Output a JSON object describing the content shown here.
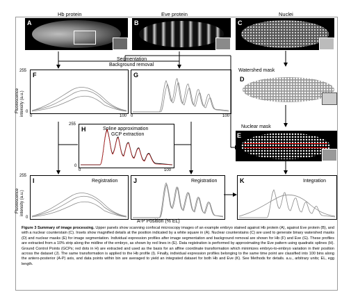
{
  "panel_titles": {
    "hb": "Hb protein",
    "eve": "Eve protein",
    "nuclei": "Nuclei"
  },
  "panel_letters": {
    "A": "A",
    "B": "B",
    "C": "C",
    "D": "D",
    "E": "E",
    "F": "F",
    "G": "G",
    "H": "H",
    "I": "I",
    "J": "J",
    "K": "K"
  },
  "process_labels": {
    "segmentation": "Segmentation",
    "background": "Background removal",
    "watershed": "Watershed mask",
    "nuclear": "Nuclear mask",
    "spline": "Spline approximation",
    "gcp": "GCP extraction",
    "registration_i": "Registration",
    "registration_j": "Registration",
    "integration": "Integration"
  },
  "axes": {
    "y_label_line1": "Fluorescence",
    "y_label_line2": "intensity (a.u.)",
    "y_max": "255",
    "y_min": "0",
    "x_max": "100",
    "x_axis_label": "A-P Position (% EL)"
  },
  "caption": {
    "heading": "Figure 3 Summary of image processing.",
    "body": " Upper panels show scanning confocal microscopy images of an example embryo stained against Hb protein (A), against Eve protein (B), and with a nuclear counterstain (C). Insets show magnified details at the position indicated by a white square in (A). Nuclear counterstains (C) are used to generate binary watershed masks (D) and nuclear masks (E) for image segmentation. Individual expression profiles after image segmentation and background removal are shown for Hb (F) and Eve (G). These profiles are extracted from a 10% strip along the midline of the embryo, as shown by red lines in (E). Data registration is performed by approximating the Eve pattern using quadratic splines (H). Ground Control Points (GCPs; red dots in H) are extracted and used as the basis for an affine coordinate transformation which minimizes embryo-to-embryo variation in their position across the dataset (J). The same transformation is applied to the Hb profile (I). Finally, individual expression profiles belonging to the same time point are classified into 100 bins along the antero-posterior (A-P) axis, and data points within bin are averaged to yield an integrated dataset for both Hb and Eve (K). See Methods for details. a.u., arbitrary units; EL, egg length."
  }
}
